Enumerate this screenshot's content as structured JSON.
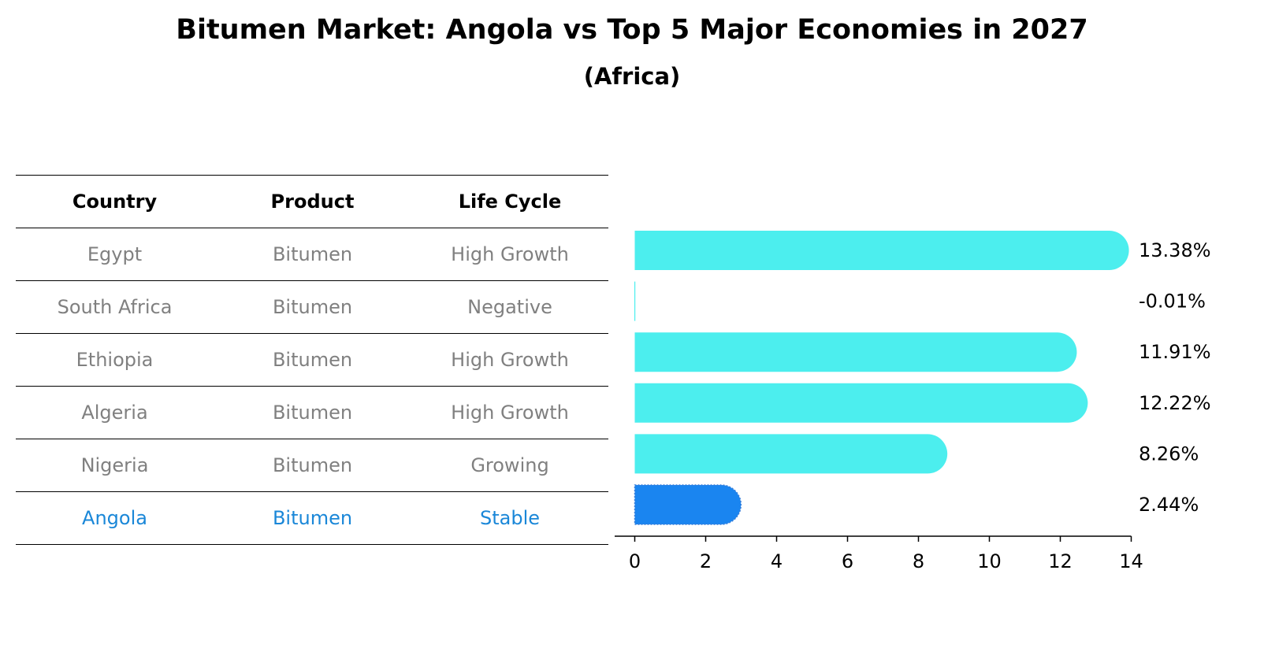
{
  "title": "Bitumen Market: Angola vs Top 5 Major Economies in 2027",
  "subtitle": "(Africa)",
  "table": {
    "headers": {
      "country": "Country",
      "product": "Product",
      "life_cycle": "Life Cycle"
    },
    "rows": [
      {
        "country": "Egypt",
        "product": "Bitumen",
        "life_cycle": "High Growth",
        "highlight": false
      },
      {
        "country": "South Africa",
        "product": "Bitumen",
        "life_cycle": "Negative",
        "highlight": false
      },
      {
        "country": "Ethiopia",
        "product": "Bitumen",
        "life_cycle": "High Growth",
        "highlight": false
      },
      {
        "country": "Algeria",
        "product": "Bitumen",
        "life_cycle": "High Growth",
        "highlight": false
      },
      {
        "country": "Nigeria",
        "product": "Bitumen",
        "life_cycle": "Growing",
        "highlight": false
      },
      {
        "country": "Angola",
        "product": "Bitumen",
        "life_cycle": "Stable",
        "highlight": true
      }
    ]
  },
  "colors": {
    "normal_text": "#808080",
    "highlight_text": "#1a87d8",
    "bar": "#4ceeee",
    "bar_highlight": "#1a85f0",
    "axis": "#000000"
  },
  "chart_data": {
    "type": "bar",
    "orientation": "horizontal",
    "categories": [
      "Egypt",
      "South Africa",
      "Ethiopia",
      "Algeria",
      "Nigeria",
      "Angola"
    ],
    "values": [
      13.38,
      -0.01,
      11.91,
      12.22,
      8.26,
      2.44
    ],
    "value_labels": [
      "13.38%",
      "-0.01%",
      "11.91%",
      "12.22%",
      "8.26%",
      "2.44%"
    ],
    "highlight_category": "Angola",
    "xlim": [
      -0.7,
      14
    ],
    "xticks": [
      "0",
      "2",
      "4",
      "6",
      "8",
      "10",
      "12",
      "14"
    ],
    "xlabel": "",
    "ylabel": "",
    "grid": false
  }
}
